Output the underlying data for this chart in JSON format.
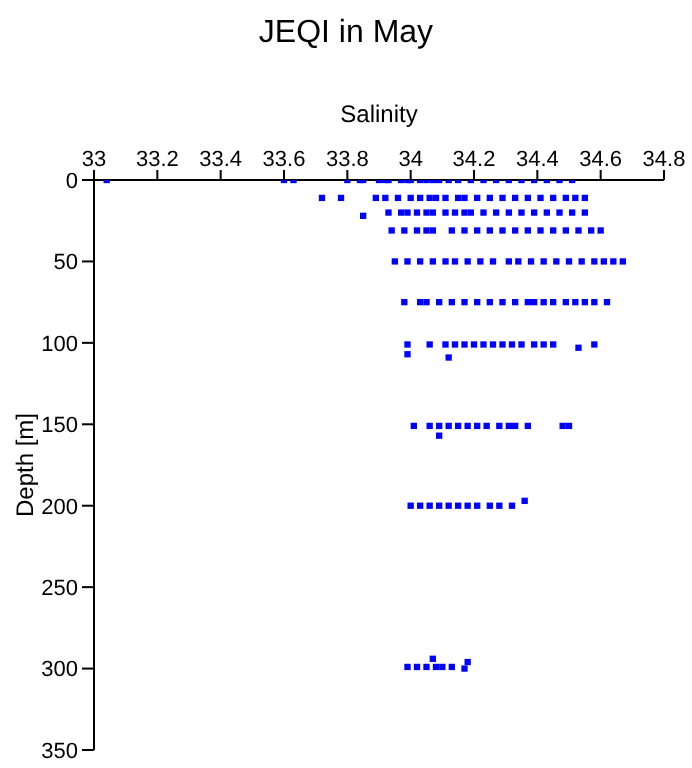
{
  "chart_data": {
    "type": "scatter",
    "title": "JEQI in May",
    "xlabel": "Salinity",
    "ylabel": "Depth [m]",
    "xlim": [
      33,
      34.8
    ],
    "xticks": [
      33,
      33.2,
      33.4,
      33.6,
      33.8,
      34,
      34.2,
      34.4,
      34.6,
      34.8
    ],
    "ylim": [
      350,
      0
    ],
    "yticks": [
      0,
      50,
      100,
      150,
      200,
      250,
      300,
      350
    ],
    "grid": false,
    "legend": false,
    "marker": "square",
    "series": [
      {
        "color": "#0000ff",
        "x": [
          33.04,
          33.6,
          33.63,
          33.8,
          33.84,
          33.85,
          33.9,
          33.92,
          33.93,
          33.97,
          33.99,
          34.0,
          34.03,
          34.05,
          34.07,
          34.09,
          34.12,
          34.15,
          34.19,
          34.23,
          34.27,
          34.31,
          34.35,
          34.39,
          34.43,
          34.47,
          34.51,
          33.72,
          33.78,
          33.89,
          33.92,
          33.96,
          34.0,
          34.03,
          34.06,
          34.08,
          34.11,
          34.15,
          34.17,
          34.21,
          34.25,
          34.29,
          34.33,
          34.37,
          34.41,
          34.45,
          34.49,
          34.52,
          34.55,
          33.85,
          33.93,
          33.97,
          33.99,
          34.02,
          34.05,
          34.07,
          34.11,
          34.14,
          34.17,
          34.19,
          34.23,
          34.27,
          34.31,
          34.35,
          34.39,
          34.43,
          34.47,
          34.51,
          34.55,
          33.94,
          33.98,
          34.02,
          34.05,
          34.07,
          34.13,
          34.17,
          34.21,
          34.25,
          34.29,
          34.33,
          34.37,
          34.41,
          34.45,
          34.49,
          34.53,
          34.57,
          34.6,
          33.95,
          33.99,
          34.03,
          34.07,
          34.11,
          34.14,
          34.18,
          34.22,
          34.26,
          34.31,
          34.34,
          34.38,
          34.42,
          34.46,
          34.5,
          34.54,
          34.58,
          34.61,
          34.64,
          34.67,
          33.98,
          34.03,
          34.05,
          34.09,
          34.13,
          34.17,
          34.21,
          34.25,
          34.29,
          34.33,
          34.37,
          34.39,
          34.42,
          34.45,
          34.49,
          34.52,
          34.55,
          34.58,
          34.62,
          33.99,
          34.06,
          34.11,
          34.14,
          34.17,
          34.2,
          34.23,
          34.26,
          34.29,
          34.32,
          34.35,
          34.39,
          34.42,
          34.45,
          34.58,
          34.53,
          33.99,
          34.12,
          34.01,
          34.06,
          34.09,
          34.12,
          34.15,
          34.18,
          34.21,
          34.24,
          34.28,
          34.31,
          34.33,
          34.37,
          34.48,
          34.5,
          34.09,
          34.0,
          34.03,
          34.06,
          34.09,
          34.12,
          34.15,
          34.18,
          34.21,
          34.25,
          34.28,
          34.32,
          34.36,
          33.99,
          34.02,
          34.05,
          34.08,
          34.1,
          34.13,
          34.07,
          34.18,
          34.17
        ],
        "values": [
          0,
          0,
          0,
          0,
          0,
          0,
          0,
          0,
          0,
          0,
          0,
          0,
          0,
          0,
          0,
          0,
          0,
          0,
          0,
          0,
          0,
          0,
          0,
          0,
          0,
          0,
          0,
          11,
          11,
          11,
          11,
          11,
          11,
          11,
          11,
          11,
          11,
          11,
          11,
          11,
          11,
          11,
          11,
          11,
          11,
          11,
          11,
          11,
          11,
          22,
          20,
          20,
          20,
          20,
          20,
          20,
          20,
          20,
          20,
          20,
          20,
          20,
          20,
          20,
          20,
          20,
          20,
          20,
          20,
          31,
          31,
          31,
          31,
          31,
          31,
          31,
          31,
          31,
          31,
          31,
          31,
          31,
          31,
          31,
          31,
          31,
          31,
          50,
          50,
          50,
          50,
          50,
          50,
          50,
          50,
          50,
          50,
          50,
          50,
          50,
          50,
          50,
          50,
          50,
          50,
          50,
          50,
          75,
          75,
          75,
          75,
          75,
          75,
          75,
          75,
          75,
          75,
          75,
          75,
          75,
          75,
          75,
          75,
          75,
          75,
          75,
          101,
          101,
          101,
          101,
          101,
          101,
          101,
          101,
          101,
          101,
          101,
          101,
          101,
          101,
          101,
          103,
          107,
          109,
          151,
          151,
          151,
          151,
          151,
          151,
          151,
          151,
          151,
          151,
          151,
          151,
          151,
          151,
          157,
          200,
          200,
          200,
          200,
          200,
          200,
          200,
          200,
          200,
          200,
          200,
          197,
          299,
          299,
          299,
          299,
          299,
          299,
          294,
          296,
          300
        ]
      }
    ]
  }
}
